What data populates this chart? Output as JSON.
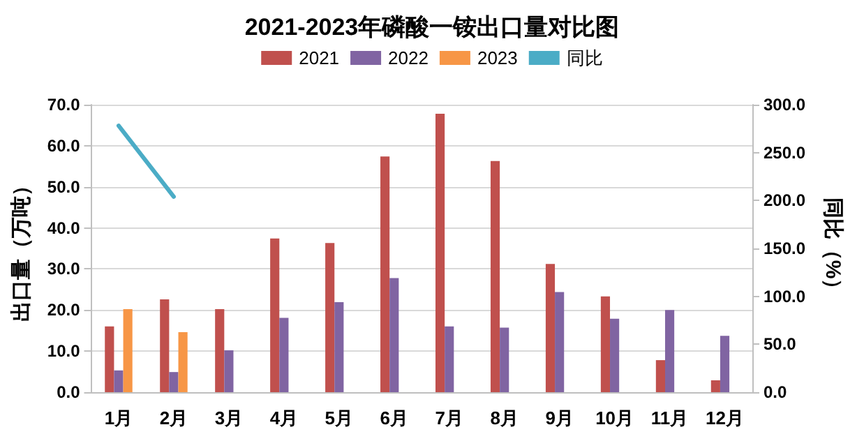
{
  "chart_data": {
    "type": "bar",
    "title": "2021-2023年磷酸一铵出口量对比图",
    "ylabel": "出口量（万吨）",
    "y2label": "同比（%）",
    "categories": [
      "1月",
      "2月",
      "3月",
      "4月",
      "5月",
      "6月",
      "7月",
      "8月",
      "9月",
      "10月",
      "11月",
      "12月"
    ],
    "series": [
      {
        "name": "2021",
        "color": "#c0504d",
        "values": [
          16.0,
          22.6,
          20.2,
          37.4,
          36.3,
          57.4,
          67.8,
          56.3,
          31.2,
          23.3,
          7.8,
          2.9
        ]
      },
      {
        "name": "2022",
        "color": "#8064a2",
        "values": [
          5.3,
          4.9,
          10.2,
          18.1,
          21.9,
          27.8,
          16.0,
          15.7,
          24.4,
          17.9,
          20.0,
          13.7
        ]
      },
      {
        "name": "2023",
        "color": "#f79646",
        "values": [
          20.2,
          14.6,
          null,
          null,
          null,
          null,
          null,
          null,
          null,
          null,
          null,
          null
        ]
      },
      {
        "name": "同比",
        "type": "line",
        "axis": "y2",
        "color": "#4bacc6",
        "values": [
          278,
          204,
          null,
          null,
          null,
          null,
          null,
          null,
          null,
          null,
          null,
          null
        ]
      }
    ],
    "ylim": [
      0,
      70
    ],
    "yticks": [
      {
        "value": 0,
        "label": "0.0"
      },
      {
        "value": 10,
        "label": "10.0"
      },
      {
        "value": 20,
        "label": "20.0"
      },
      {
        "value": 30,
        "label": "30.0"
      },
      {
        "value": 40,
        "label": "40.0"
      },
      {
        "value": 50,
        "label": "50.0"
      },
      {
        "value": 60,
        "label": "60.0"
      },
      {
        "value": 70,
        "label": "70.0"
      }
    ],
    "y2lim": [
      0,
      300
    ],
    "y2ticks": [
      {
        "value": 0,
        "label": "0.0"
      },
      {
        "value": 50,
        "label": "50.0"
      },
      {
        "value": 100,
        "label": "100.0"
      },
      {
        "value": 150,
        "label": "150.0"
      },
      {
        "value": 200,
        "label": "200.0"
      },
      {
        "value": 250,
        "label": "250.0"
      },
      {
        "value": 300,
        "label": "300.0"
      }
    ],
    "grid": "y",
    "legend": "top",
    "marker": "none",
    "line_style": "solid"
  }
}
